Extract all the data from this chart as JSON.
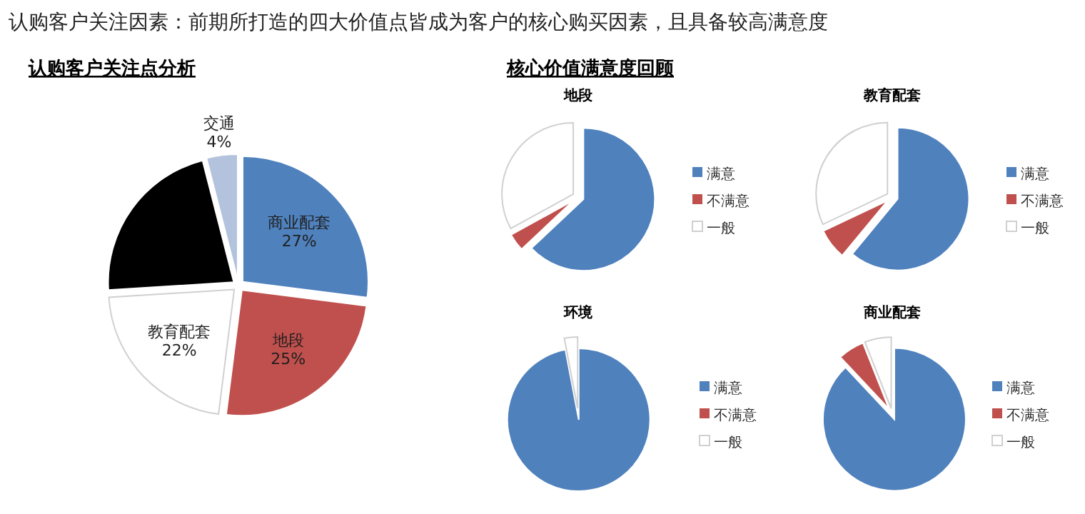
{
  "chart_data": [
    {
      "type": "pie",
      "title": "认购客户关注点分析",
      "categories": [
        "商业配套",
        "地段",
        "教育配套",
        null,
        "交通"
      ],
      "values": [
        27,
        25,
        22,
        22,
        4
      ],
      "colors": [
        "#4f81bd",
        "#c0504d",
        "#ffffff",
        "#000000",
        "#b3c3de"
      ],
      "value_labels": [
        "27%",
        "25%",
        "22%",
        null,
        "4%"
      ],
      "annotations": [
        "认购客户关注因素：前期所打造的四大价值点皆成为客户的核心购买因素，且具备较高满意度"
      ]
    },
    {
      "type": "pie",
      "title": "地段",
      "categories": [
        "满意",
        "不满意",
        "一般"
      ],
      "values": [
        63,
        4,
        33
      ],
      "colors": [
        "#4f81bd",
        "#c0504d",
        "#ffffff"
      ],
      "legend": "right",
      "annotations": [
        "核心价值满意度回顾"
      ]
    },
    {
      "type": "pie",
      "title": "教育配套",
      "categories": [
        "满意",
        "不满意",
        "一般"
      ],
      "values": [
        61,
        7,
        32
      ],
      "colors": [
        "#4f81bd",
        "#c0504d",
        "#ffffff"
      ],
      "legend": "right"
    },
    {
      "type": "pie",
      "title": "环境",
      "categories": [
        "满意",
        "不满意",
        "一般"
      ],
      "values": [
        97,
        0,
        3
      ],
      "colors": [
        "#4f81bd",
        "#c0504d",
        "#ffffff"
      ],
      "legend": "right"
    },
    {
      "type": "pie",
      "title": "商业配套",
      "categories": [
        "满意",
        "不满意",
        "一般"
      ],
      "values": [
        88,
        6,
        6
      ],
      "colors": [
        "#4f81bd",
        "#c0504d",
        "#ffffff"
      ],
      "legend": "right"
    }
  ]
}
